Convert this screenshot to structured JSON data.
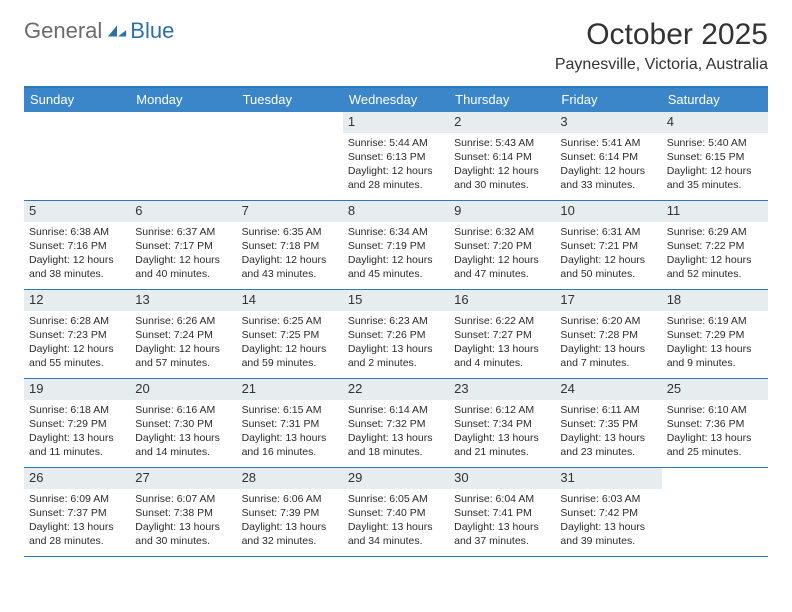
{
  "brand": {
    "part1": "General",
    "part2": "Blue"
  },
  "title": "October 2025",
  "location": "Paynesville, Victoria, Australia",
  "colors": {
    "header_bg": "#3b86c8",
    "rule": "#2f78b8",
    "daynum_bg": "#e7ecef",
    "text": "#333333",
    "body_text": "#2b2b2b",
    "logo_gray": "#6b6b6b",
    "logo_blue": "#2f6fa8"
  },
  "weekdays": [
    "Sunday",
    "Monday",
    "Tuesday",
    "Wednesday",
    "Thursday",
    "Friday",
    "Saturday"
  ],
  "weeks": [
    [
      {
        "n": "",
        "sr": "",
        "ss": "",
        "dl1": "",
        "dl2": ""
      },
      {
        "n": "",
        "sr": "",
        "ss": "",
        "dl1": "",
        "dl2": ""
      },
      {
        "n": "",
        "sr": "",
        "ss": "",
        "dl1": "",
        "dl2": ""
      },
      {
        "n": "1",
        "sr": "Sunrise: 5:44 AM",
        "ss": "Sunset: 6:13 PM",
        "dl1": "Daylight: 12 hours",
        "dl2": "and 28 minutes."
      },
      {
        "n": "2",
        "sr": "Sunrise: 5:43 AM",
        "ss": "Sunset: 6:14 PM",
        "dl1": "Daylight: 12 hours",
        "dl2": "and 30 minutes."
      },
      {
        "n": "3",
        "sr": "Sunrise: 5:41 AM",
        "ss": "Sunset: 6:14 PM",
        "dl1": "Daylight: 12 hours",
        "dl2": "and 33 minutes."
      },
      {
        "n": "4",
        "sr": "Sunrise: 5:40 AM",
        "ss": "Sunset: 6:15 PM",
        "dl1": "Daylight: 12 hours",
        "dl2": "and 35 minutes."
      }
    ],
    [
      {
        "n": "5",
        "sr": "Sunrise: 6:38 AM",
        "ss": "Sunset: 7:16 PM",
        "dl1": "Daylight: 12 hours",
        "dl2": "and 38 minutes."
      },
      {
        "n": "6",
        "sr": "Sunrise: 6:37 AM",
        "ss": "Sunset: 7:17 PM",
        "dl1": "Daylight: 12 hours",
        "dl2": "and 40 minutes."
      },
      {
        "n": "7",
        "sr": "Sunrise: 6:35 AM",
        "ss": "Sunset: 7:18 PM",
        "dl1": "Daylight: 12 hours",
        "dl2": "and 43 minutes."
      },
      {
        "n": "8",
        "sr": "Sunrise: 6:34 AM",
        "ss": "Sunset: 7:19 PM",
        "dl1": "Daylight: 12 hours",
        "dl2": "and 45 minutes."
      },
      {
        "n": "9",
        "sr": "Sunrise: 6:32 AM",
        "ss": "Sunset: 7:20 PM",
        "dl1": "Daylight: 12 hours",
        "dl2": "and 47 minutes."
      },
      {
        "n": "10",
        "sr": "Sunrise: 6:31 AM",
        "ss": "Sunset: 7:21 PM",
        "dl1": "Daylight: 12 hours",
        "dl2": "and 50 minutes."
      },
      {
        "n": "11",
        "sr": "Sunrise: 6:29 AM",
        "ss": "Sunset: 7:22 PM",
        "dl1": "Daylight: 12 hours",
        "dl2": "and 52 minutes."
      }
    ],
    [
      {
        "n": "12",
        "sr": "Sunrise: 6:28 AM",
        "ss": "Sunset: 7:23 PM",
        "dl1": "Daylight: 12 hours",
        "dl2": "and 55 minutes."
      },
      {
        "n": "13",
        "sr": "Sunrise: 6:26 AM",
        "ss": "Sunset: 7:24 PM",
        "dl1": "Daylight: 12 hours",
        "dl2": "and 57 minutes."
      },
      {
        "n": "14",
        "sr": "Sunrise: 6:25 AM",
        "ss": "Sunset: 7:25 PM",
        "dl1": "Daylight: 12 hours",
        "dl2": "and 59 minutes."
      },
      {
        "n": "15",
        "sr": "Sunrise: 6:23 AM",
        "ss": "Sunset: 7:26 PM",
        "dl1": "Daylight: 13 hours",
        "dl2": "and 2 minutes."
      },
      {
        "n": "16",
        "sr": "Sunrise: 6:22 AM",
        "ss": "Sunset: 7:27 PM",
        "dl1": "Daylight: 13 hours",
        "dl2": "and 4 minutes."
      },
      {
        "n": "17",
        "sr": "Sunrise: 6:20 AM",
        "ss": "Sunset: 7:28 PM",
        "dl1": "Daylight: 13 hours",
        "dl2": "and 7 minutes."
      },
      {
        "n": "18",
        "sr": "Sunrise: 6:19 AM",
        "ss": "Sunset: 7:29 PM",
        "dl1": "Daylight: 13 hours",
        "dl2": "and 9 minutes."
      }
    ],
    [
      {
        "n": "19",
        "sr": "Sunrise: 6:18 AM",
        "ss": "Sunset: 7:29 PM",
        "dl1": "Daylight: 13 hours",
        "dl2": "and 11 minutes."
      },
      {
        "n": "20",
        "sr": "Sunrise: 6:16 AM",
        "ss": "Sunset: 7:30 PM",
        "dl1": "Daylight: 13 hours",
        "dl2": "and 14 minutes."
      },
      {
        "n": "21",
        "sr": "Sunrise: 6:15 AM",
        "ss": "Sunset: 7:31 PM",
        "dl1": "Daylight: 13 hours",
        "dl2": "and 16 minutes."
      },
      {
        "n": "22",
        "sr": "Sunrise: 6:14 AM",
        "ss": "Sunset: 7:32 PM",
        "dl1": "Daylight: 13 hours",
        "dl2": "and 18 minutes."
      },
      {
        "n": "23",
        "sr": "Sunrise: 6:12 AM",
        "ss": "Sunset: 7:34 PM",
        "dl1": "Daylight: 13 hours",
        "dl2": "and 21 minutes."
      },
      {
        "n": "24",
        "sr": "Sunrise: 6:11 AM",
        "ss": "Sunset: 7:35 PM",
        "dl1": "Daylight: 13 hours",
        "dl2": "and 23 minutes."
      },
      {
        "n": "25",
        "sr": "Sunrise: 6:10 AM",
        "ss": "Sunset: 7:36 PM",
        "dl1": "Daylight: 13 hours",
        "dl2": "and 25 minutes."
      }
    ],
    [
      {
        "n": "26",
        "sr": "Sunrise: 6:09 AM",
        "ss": "Sunset: 7:37 PM",
        "dl1": "Daylight: 13 hours",
        "dl2": "and 28 minutes."
      },
      {
        "n": "27",
        "sr": "Sunrise: 6:07 AM",
        "ss": "Sunset: 7:38 PM",
        "dl1": "Daylight: 13 hours",
        "dl2": "and 30 minutes."
      },
      {
        "n": "28",
        "sr": "Sunrise: 6:06 AM",
        "ss": "Sunset: 7:39 PM",
        "dl1": "Daylight: 13 hours",
        "dl2": "and 32 minutes."
      },
      {
        "n": "29",
        "sr": "Sunrise: 6:05 AM",
        "ss": "Sunset: 7:40 PM",
        "dl1": "Daylight: 13 hours",
        "dl2": "and 34 minutes."
      },
      {
        "n": "30",
        "sr": "Sunrise: 6:04 AM",
        "ss": "Sunset: 7:41 PM",
        "dl1": "Daylight: 13 hours",
        "dl2": "and 37 minutes."
      },
      {
        "n": "31",
        "sr": "Sunrise: 6:03 AM",
        "ss": "Sunset: 7:42 PM",
        "dl1": "Daylight: 13 hours",
        "dl2": "and 39 minutes."
      },
      {
        "n": "",
        "sr": "",
        "ss": "",
        "dl1": "",
        "dl2": ""
      }
    ]
  ]
}
